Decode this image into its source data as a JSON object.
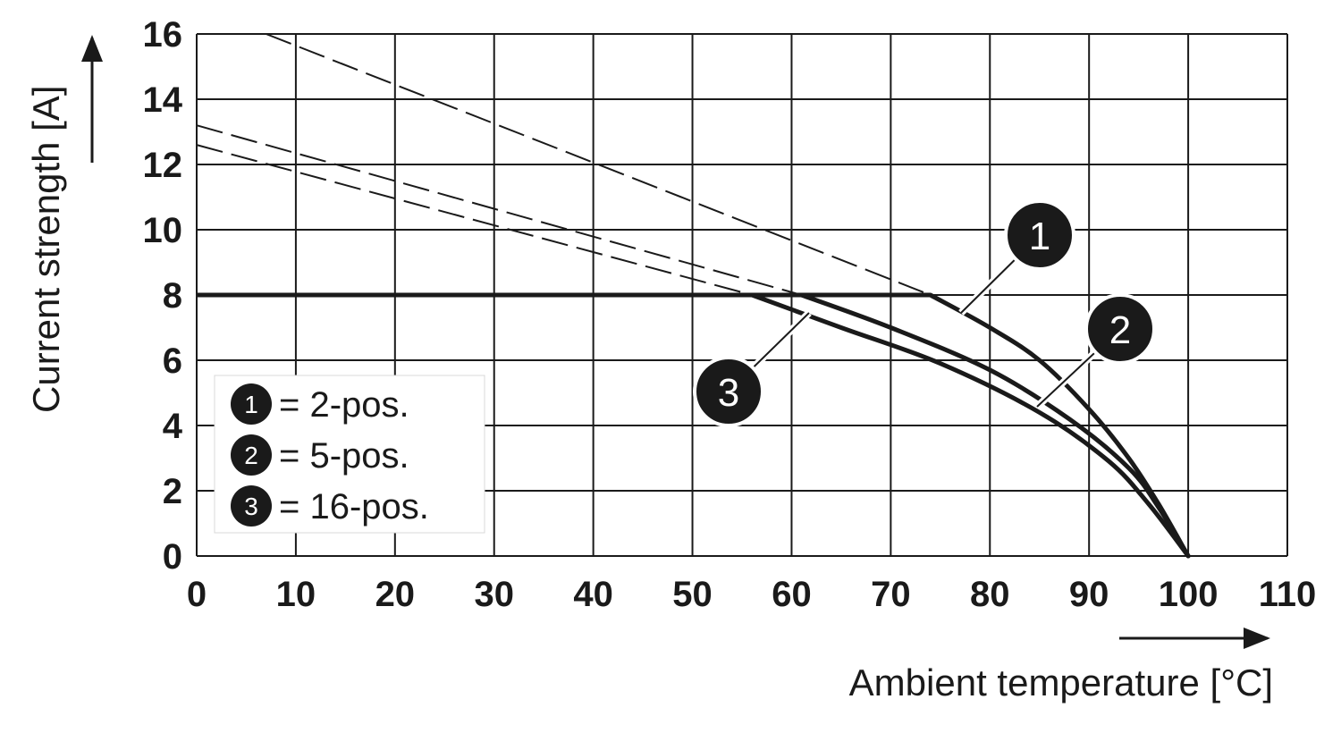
{
  "chart_data": {
    "type": "line",
    "xlabel": "Ambient temperature [°C]",
    "ylabel": "Current strength [A]",
    "xlim": [
      0,
      110
    ],
    "ylim": [
      0,
      16
    ],
    "x_ticks": [
      "0",
      "10",
      "20",
      "30",
      "40",
      "50",
      "60",
      "70",
      "80",
      "90",
      "100",
      "110"
    ],
    "y_ticks": [
      "0",
      "2",
      "4",
      "6",
      "8",
      "10",
      "12",
      "14",
      "16"
    ],
    "grid": true,
    "legend_position": "bottom-left",
    "limit_current": 8,
    "series": [
      {
        "marker": "1",
        "name": "= 2-pos.",
        "dashed_line": [
          [
            7,
            16
          ],
          [
            74,
            8
          ]
        ],
        "solid_curve": [
          [
            74,
            8
          ],
          [
            80,
            7.0
          ],
          [
            85,
            6.0
          ],
          [
            90,
            4.5
          ],
          [
            94,
            3.0
          ],
          [
            97,
            1.6
          ],
          [
            100,
            0
          ]
        ]
      },
      {
        "marker": "2",
        "name": "= 5-pos.",
        "dashed_line": [
          [
            0,
            13.2
          ],
          [
            61,
            8
          ]
        ],
        "solid_curve": [
          [
            61,
            8
          ],
          [
            70,
            7.0
          ],
          [
            80,
            5.7
          ],
          [
            88,
            4.2
          ],
          [
            94,
            2.7
          ],
          [
            97,
            1.5
          ],
          [
            100,
            0
          ]
        ]
      },
      {
        "marker": "3",
        "name": "= 16-pos.",
        "dashed_line": [
          [
            0,
            12.6
          ],
          [
            56,
            8
          ]
        ],
        "solid_curve": [
          [
            56,
            8
          ],
          [
            65,
            7.0
          ],
          [
            75,
            5.9
          ],
          [
            85,
            4.4
          ],
          [
            92,
            2.9
          ],
          [
            96,
            1.6
          ],
          [
            100,
            0
          ]
        ]
      }
    ]
  }
}
